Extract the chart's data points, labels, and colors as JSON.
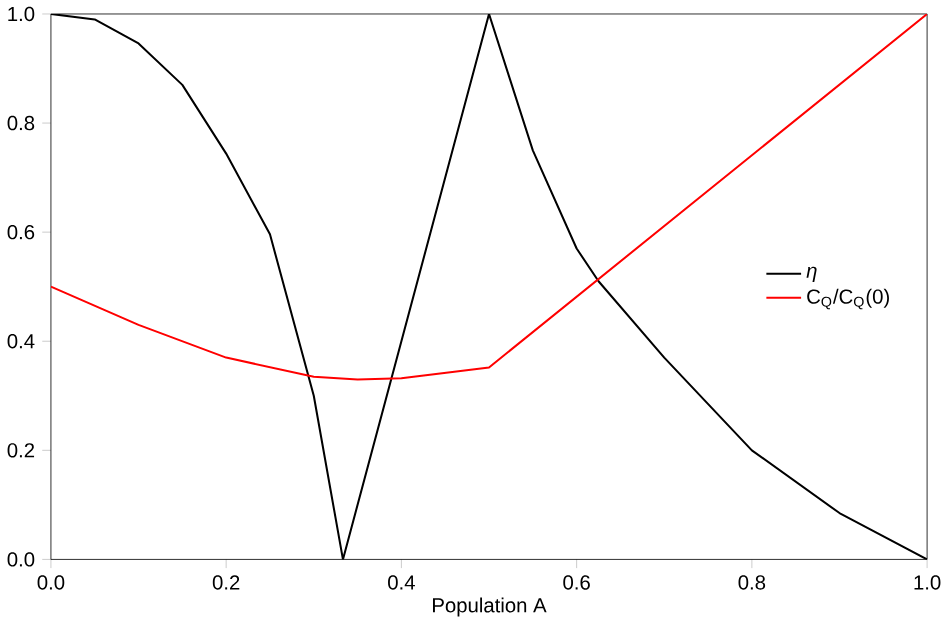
{
  "chart_data": {
    "type": "line",
    "xlabel": "Population A",
    "x": [
      0,
      0.05,
      0.1,
      0.15,
      0.2,
      0.25,
      0.3,
      0.3333,
      0.4,
      0.5,
      0.55,
      0.6,
      0.625,
      0.7,
      0.8,
      0.9,
      1.0
    ],
    "series": [
      {
        "name": "η",
        "color": "#000000",
        "values": [
          1.0,
          0.99,
          0.946,
          0.87,
          0.744,
          0.596,
          0.3,
          0.0,
          0.4,
          1.0,
          0.75,
          0.57,
          0.51,
          0.37,
          0.2,
          0.085,
          0.0
        ]
      },
      {
        "name": "C$_{Q}$/C$_{Q}$(0)",
        "color": "#ff0000",
        "x": [
          0,
          0.1,
          0.2,
          0.3,
          0.35,
          0.4,
          0.5,
          1.0
        ],
        "values": [
          0.5,
          0.43,
          0.37,
          0.335,
          0.33,
          0.332,
          0.352,
          1.0
        ]
      }
    ],
    "xlim": [
      0,
      1
    ],
    "ylim": [
      0,
      1
    ],
    "xticks": [
      {
        "value": 0,
        "label": "0.0"
      },
      {
        "value": 0.2,
        "label": "0.2"
      },
      {
        "value": 0.4,
        "label": "0.4"
      },
      {
        "value": 0.6,
        "label": "0.6"
      },
      {
        "value": 0.8,
        "label": "0.8"
      },
      {
        "value": 1,
        "label": "1.0"
      }
    ],
    "yticks": [
      {
        "value": 0,
        "label": "0.0"
      },
      {
        "value": 0.2,
        "label": "0.2"
      },
      {
        "value": 0.4,
        "label": "0.4"
      },
      {
        "value": 0.6,
        "label": "0.6"
      },
      {
        "value": 0.8,
        "label": "0.8"
      },
      {
        "value": 1,
        "label": "1.0"
      }
    ],
    "grid": false,
    "legend": "right",
    "marker": "none",
    "line_style": "solid"
  }
}
